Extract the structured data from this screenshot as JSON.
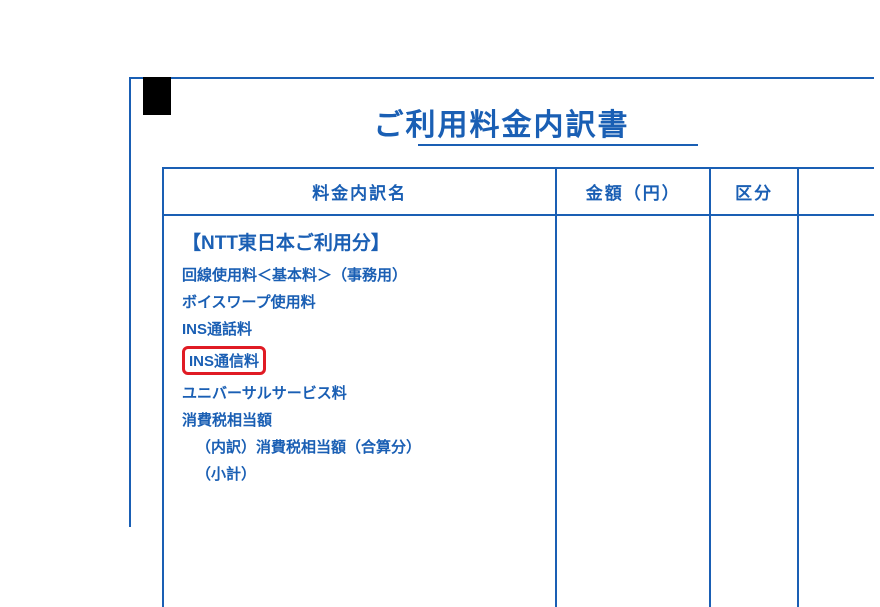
{
  "document": {
    "title": "ご利用料金内訳書",
    "colors": {
      "primary": "#1a5fb4",
      "highlight_border": "#e01b24",
      "background": "#ffffff",
      "tab": "#000000"
    },
    "table": {
      "headers": {
        "name": "料金内訳名",
        "amount": "金額（円）",
        "category": "区分"
      },
      "section_title": "【NTT東日本ご利用分】",
      "items": [
        {
          "label": "回線使用料＜基本料＞（事務用）",
          "highlighted": false
        },
        {
          "label": "ボイスワープ使用料",
          "highlighted": false
        },
        {
          "label": "INS通話料",
          "highlighted": false
        },
        {
          "label": "INS通信料",
          "highlighted": true
        },
        {
          "label": "ユニバーサルサービス料",
          "highlighted": false
        },
        {
          "label": "消費税相当額",
          "highlighted": false
        },
        {
          "label": "（内訳）消費税相当額（合算分）",
          "highlighted": false,
          "sub": true
        },
        {
          "label": "（小計）",
          "highlighted": false,
          "sub": true
        }
      ]
    }
  }
}
